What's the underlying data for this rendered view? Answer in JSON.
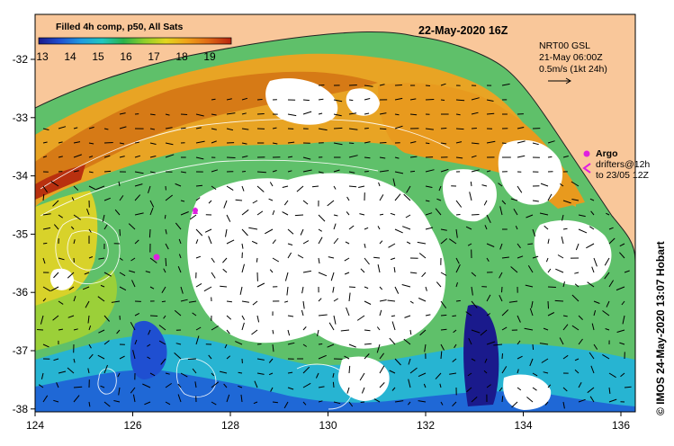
{
  "map": {
    "date_title": "22-May-2020 16Z",
    "colorbar": {
      "title": "Filled 4h comp, p50, All Sats",
      "tick_labels": [
        "13",
        "14",
        "15",
        "16",
        "17",
        "18",
        "19"
      ],
      "colors": [
        "#1a1a8c",
        "#1f4fd1",
        "#1f9be0",
        "#1fc7c0",
        "#29b24a",
        "#8fcf2a",
        "#e2d61e",
        "#f0a21a",
        "#e06a16",
        "#b8230f"
      ]
    },
    "info": {
      "line1": "NRT00 GSL",
      "line2": "21-May 06:00Z",
      "line3": "0.5m/s (1kt 24h)"
    },
    "legend": {
      "argo": "Argo",
      "drifters_line1": "drifters@12h",
      "drifters_line2": "to 23/05 12Z"
    },
    "credit": "© IMOS 24-May-2020 13:07 Hobart",
    "colors": {
      "land": "#f9c79a",
      "no_data": "#ffffff",
      "argo": "#e020e0",
      "contour": "#ffffff"
    },
    "axes": {
      "x_ticks": [
        "124",
        "126",
        "128",
        "130",
        "132",
        "134",
        "136"
      ],
      "y_ticks": [
        "-32",
        "-33",
        "-34",
        "-35",
        "-36",
        "-37",
        "-38"
      ]
    }
  }
}
